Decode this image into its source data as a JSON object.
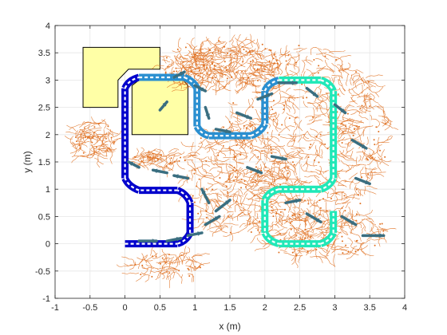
{
  "chart_data": {
    "type": "scatter",
    "title": "",
    "xlabel": "x (m)",
    "ylabel": "y (m)",
    "xlim": [
      -1,
      4
    ],
    "ylim": [
      -1,
      4
    ],
    "xticks": [
      -1,
      -0.5,
      0,
      0.5,
      1,
      1.5,
      2,
      2.5,
      3,
      3.5,
      4
    ],
    "yticks": [
      -1,
      -0.5,
      0,
      0.5,
      1,
      1.5,
      2,
      2.5,
      3,
      3.5,
      4
    ],
    "xtick_labels": [
      "-1",
      "-0.5",
      "0",
      "0.5",
      "1",
      "1.5",
      "2",
      "2.5",
      "3",
      "3.5",
      "4"
    ],
    "ytick_labels": [
      "-1",
      "-0.5",
      "0",
      "0.5",
      "1",
      "1.5",
      "2",
      "2.5",
      "3",
      "3.5",
      "4"
    ],
    "grid": true,
    "colors": {
      "tree": "#e07020",
      "obstacle_fill": "#ffffa6",
      "obstacle_edge": "#000000",
      "heading_arrows": "#3a6e80",
      "path_dark": "#0000cc",
      "path_mid": "#2a8fd0",
      "path_light": "#20e8b8",
      "path_white": "#ffffff"
    },
    "obstacles": [
      {
        "name": "obstacle-1",
        "polygon": [
          [
            -0.6,
            2.5
          ],
          [
            -0.6,
            3.6
          ],
          [
            0.5,
            3.6
          ],
          [
            0.5,
            3.2
          ],
          [
            0.05,
            3.2
          ],
          [
            -0.1,
            3.0
          ],
          [
            -0.1,
            2.5
          ]
        ]
      },
      {
        "name": "obstacle-2",
        "polygon": [
          [
            0.1,
            2.0
          ],
          [
            0.1,
            2.9
          ],
          [
            0.25,
            3.05
          ],
          [
            0.8,
            3.05
          ],
          [
            0.9,
            2.9
          ],
          [
            0.9,
            2.0
          ]
        ]
      }
    ],
    "path": [
      {
        "segment": "start-straight",
        "shade": "dark",
        "points": [
          [
            0.0,
            0.0
          ],
          [
            0.75,
            0.0
          ]
        ]
      },
      {
        "segment": "turn-up-1",
        "shade": "dark",
        "points": [
          [
            0.75,
            0.0
          ],
          [
            0.88,
            0.05
          ],
          [
            0.93,
            0.2
          ]
        ]
      },
      {
        "segment": "up-1",
        "shade": "dark",
        "points": [
          [
            0.93,
            0.2
          ],
          [
            0.93,
            0.75
          ]
        ]
      },
      {
        "segment": "turn-left-1",
        "shade": "dark",
        "points": [
          [
            0.93,
            0.75
          ],
          [
            0.88,
            0.92
          ],
          [
            0.75,
            0.98
          ]
        ]
      },
      {
        "segment": "left-1",
        "shade": "dark",
        "points": [
          [
            0.75,
            0.98
          ],
          [
            0.2,
            0.98
          ]
        ]
      },
      {
        "segment": "turn-up-2",
        "shade": "dark",
        "points": [
          [
            0.2,
            0.98
          ],
          [
            0.05,
            1.05
          ],
          [
            0.0,
            1.2
          ]
        ]
      },
      {
        "segment": "up-2",
        "shade": "dark",
        "points": [
          [
            0.0,
            1.2
          ],
          [
            0.0,
            2.85
          ]
        ]
      },
      {
        "segment": "turn-right-1",
        "shade": "dark",
        "points": [
          [
            0.0,
            2.85
          ],
          [
            0.05,
            3.0
          ],
          [
            0.2,
            3.05
          ]
        ]
      },
      {
        "segment": "right-1",
        "shade": "mid",
        "points": [
          [
            0.2,
            3.05
          ],
          [
            0.85,
            3.05
          ]
        ]
      },
      {
        "segment": "turn-down-1",
        "shade": "mid",
        "points": [
          [
            0.85,
            3.05
          ],
          [
            0.98,
            2.98
          ],
          [
            1.03,
            2.85
          ]
        ]
      },
      {
        "segment": "down-1",
        "shade": "mid",
        "points": [
          [
            1.03,
            2.85
          ],
          [
            1.03,
            2.15
          ]
        ]
      },
      {
        "segment": "turn-right-2",
        "shade": "mid",
        "points": [
          [
            1.03,
            2.15
          ],
          [
            1.08,
            2.02
          ],
          [
            1.2,
            1.98
          ]
        ]
      },
      {
        "segment": "right-2",
        "shade": "mid",
        "points": [
          [
            1.2,
            1.98
          ],
          [
            1.8,
            1.98
          ]
        ]
      },
      {
        "segment": "turn-up-3",
        "shade": "mid",
        "points": [
          [
            1.8,
            1.98
          ],
          [
            1.95,
            2.05
          ],
          [
            2.0,
            2.2
          ]
        ]
      },
      {
        "segment": "up-3",
        "shade": "mid",
        "points": [
          [
            2.0,
            2.2
          ],
          [
            2.0,
            2.8
          ]
        ]
      },
      {
        "segment": "turn-right-3",
        "shade": "mid",
        "points": [
          [
            2.0,
            2.8
          ],
          [
            2.05,
            2.95
          ],
          [
            2.2,
            3.0
          ]
        ]
      },
      {
        "segment": "right-3",
        "shade": "light",
        "points": [
          [
            2.2,
            3.0
          ],
          [
            2.8,
            3.0
          ]
        ]
      },
      {
        "segment": "turn-down-2",
        "shade": "light",
        "points": [
          [
            2.8,
            3.0
          ],
          [
            2.93,
            2.95
          ],
          [
            2.98,
            2.8
          ]
        ]
      },
      {
        "segment": "down-2",
        "shade": "light",
        "points": [
          [
            2.98,
            2.8
          ],
          [
            2.98,
            1.2
          ]
        ]
      },
      {
        "segment": "turn-left-2",
        "shade": "light",
        "points": [
          [
            2.98,
            1.2
          ],
          [
            2.93,
            1.05
          ],
          [
            2.8,
            1.0
          ]
        ]
      },
      {
        "segment": "left-2",
        "shade": "light",
        "points": [
          [
            2.8,
            1.0
          ],
          [
            2.2,
            1.0
          ]
        ]
      },
      {
        "segment": "turn-down-3",
        "shade": "light",
        "points": [
          [
            2.2,
            1.0
          ],
          [
            2.05,
            0.95
          ],
          [
            2.0,
            0.8
          ]
        ]
      },
      {
        "segment": "down-3",
        "shade": "light",
        "points": [
          [
            2.0,
            0.8
          ],
          [
            2.0,
            0.2
          ]
        ]
      },
      {
        "segment": "turn-right-4",
        "shade": "light",
        "points": [
          [
            2.0,
            0.2
          ],
          [
            2.05,
            0.05
          ],
          [
            2.2,
            0.0
          ]
        ]
      },
      {
        "segment": "right-4",
        "shade": "light",
        "points": [
          [
            2.2,
            0.0
          ],
          [
            2.8,
            0.0
          ]
        ]
      },
      {
        "segment": "turn-up-4",
        "shade": "light",
        "points": [
          [
            2.8,
            0.0
          ],
          [
            2.93,
            0.05
          ],
          [
            2.98,
            0.2
          ]
        ]
      },
      {
        "segment": "up-4",
        "shade": "light",
        "points": [
          [
            2.98,
            0.2
          ],
          [
            2.98,
            0.6
          ]
        ]
      }
    ],
    "heading_arrows": [
      [
        [
          0.2,
          0.05
        ],
        [
          0.45,
          0.05
        ]
      ],
      [
        [
          0.6,
          0.05
        ],
        [
          0.8,
          0.1
        ]
      ],
      [
        [
          0.9,
          0.15
        ],
        [
          1.1,
          0.2
        ]
      ],
      [
        [
          1.15,
          0.35
        ],
        [
          1.35,
          0.5
        ]
      ],
      [
        [
          1.3,
          0.6
        ],
        [
          1.5,
          0.8
        ]
      ],
      [
        [
          1.2,
          0.75
        ],
        [
          1.1,
          1.0
        ]
      ],
      [
        [
          0.9,
          1.2
        ],
        [
          0.7,
          1.25
        ]
      ],
      [
        [
          0.6,
          1.3
        ],
        [
          0.4,
          1.35
        ]
      ],
      [
        [
          0.2,
          1.4
        ],
        [
          0.05,
          1.5
        ]
      ],
      [
        [
          0.5,
          2.45
        ],
        [
          0.6,
          2.6
        ]
      ],
      [
        [
          0.7,
          3.05
        ],
        [
          0.85,
          3.15
        ]
      ],
      [
        [
          1.0,
          2.9
        ],
        [
          1.15,
          2.8
        ]
      ],
      [
        [
          1.15,
          2.5
        ],
        [
          1.2,
          2.3
        ]
      ],
      [
        [
          1.3,
          2.1
        ],
        [
          1.5,
          2.05
        ]
      ],
      [
        [
          1.6,
          2.4
        ],
        [
          1.8,
          2.3
        ]
      ],
      [
        [
          1.9,
          2.65
        ],
        [
          2.1,
          2.75
        ]
      ],
      [
        [
          2.2,
          2.95
        ],
        [
          2.45,
          2.95
        ]
      ],
      [
        [
          2.6,
          2.85
        ],
        [
          2.75,
          2.7
        ]
      ],
      [
        [
          3.0,
          2.55
        ],
        [
          3.15,
          2.4
        ]
      ],
      [
        [
          3.25,
          1.9
        ],
        [
          3.45,
          1.75
        ]
      ],
      [
        [
          3.3,
          1.2
        ],
        [
          3.5,
          1.1
        ]
      ],
      [
        [
          3.1,
          0.5
        ],
        [
          3.3,
          0.35
        ]
      ],
      [
        [
          3.4,
          0.15
        ],
        [
          3.7,
          0.15
        ]
      ],
      [
        [
          2.6,
          0.55
        ],
        [
          2.8,
          0.4
        ]
      ],
      [
        [
          2.3,
          0.75
        ],
        [
          2.5,
          0.8
        ]
      ],
      [
        [
          1.75,
          1.4
        ],
        [
          1.95,
          1.3
        ]
      ],
      [
        [
          2.1,
          1.6
        ],
        [
          2.3,
          1.55
        ]
      ]
    ],
    "exploration_regions": [
      {
        "cx": 2.6,
        "cy": 2.0,
        "rx": 1.15,
        "ry": 1.6,
        "weight": 520
      },
      {
        "cx": 1.6,
        "cy": 1.2,
        "rx": 0.75,
        "ry": 1.0,
        "weight": 260
      },
      {
        "cx": 2.8,
        "cy": 0.2,
        "rx": 0.9,
        "ry": 0.45,
        "weight": 200
      },
      {
        "cx": 0.9,
        "cy": 3.25,
        "rx": 0.35,
        "ry": 0.35,
        "weight": 110
      },
      {
        "cx": -0.45,
        "cy": 1.9,
        "rx": 0.3,
        "ry": 0.35,
        "weight": 90
      },
      {
        "cx": 0.45,
        "cy": 1.55,
        "rx": 0.35,
        "ry": 0.15,
        "weight": 60
      },
      {
        "cx": 0.6,
        "cy": -0.4,
        "rx": 0.5,
        "ry": 0.25,
        "weight": 70
      },
      {
        "cx": 1.6,
        "cy": 3.3,
        "rx": 0.6,
        "ry": 0.45,
        "weight": 180
      }
    ]
  }
}
